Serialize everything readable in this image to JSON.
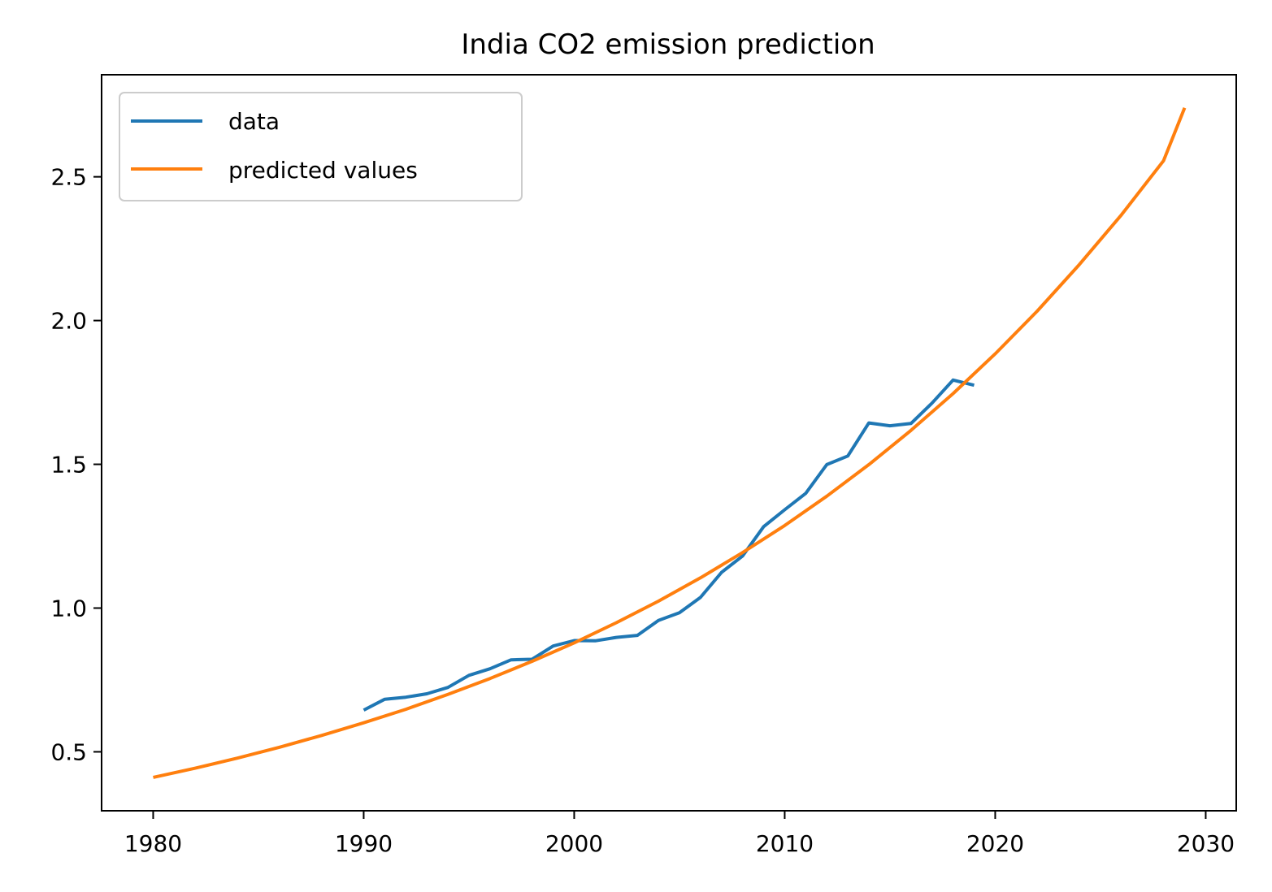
{
  "chart_data": {
    "type": "line",
    "title": "India CO2 emission prediction",
    "xlabel": "",
    "ylabel": "",
    "xlim": [
      1977.55,
      2031.45
    ],
    "ylim": [
      0.295,
      2.855
    ],
    "x_ticks": [
      {
        "value": 1980,
        "label": "1980"
      },
      {
        "value": 1990,
        "label": "1990"
      },
      {
        "value": 2000,
        "label": "2000"
      },
      {
        "value": 2010,
        "label": "2010"
      },
      {
        "value": 2020,
        "label": "2020"
      },
      {
        "value": 2030,
        "label": "2030"
      }
    ],
    "y_ticks": [
      {
        "value": 0.5,
        "label": "0.5"
      },
      {
        "value": 1.0,
        "label": "1.0"
      },
      {
        "value": 1.5,
        "label": "1.5"
      },
      {
        "value": 2.0,
        "label": "2.0"
      },
      {
        "value": 2.5,
        "label": "2.5"
      }
    ],
    "grid": false,
    "legend": {
      "position": "top-left"
    },
    "series": [
      {
        "name": "data",
        "color": "#1f77b4",
        "x": [
          1990,
          1991,
          1992,
          1993,
          1994,
          1995,
          1996,
          1997,
          1998,
          1999,
          2000,
          2001,
          2002,
          2003,
          2004,
          2005,
          2006,
          2007,
          2008,
          2009,
          2010,
          2011,
          2012,
          2013,
          2014,
          2015,
          2016,
          2017,
          2018,
          2019
        ],
        "y": [
          0.645,
          0.683,
          0.69,
          0.702,
          0.724,
          0.766,
          0.789,
          0.82,
          0.822,
          0.868,
          0.887,
          0.886,
          0.898,
          0.905,
          0.957,
          0.984,
          1.037,
          1.124,
          1.181,
          1.283,
          1.342,
          1.399,
          1.499,
          1.529,
          1.644,
          1.634,
          1.642,
          1.713,
          1.793,
          1.775
        ]
      },
      {
        "name": "predicted values",
        "color": "#ff7f0e",
        "x": [
          1980,
          1982,
          1984,
          1986,
          1988,
          1990,
          1992,
          1994,
          1996,
          1998,
          2000,
          2002,
          2004,
          2006,
          2008,
          2010,
          2012,
          2014,
          2016,
          2018,
          2020,
          2022,
          2024,
          2026,
          2028,
          2029
        ],
        "y": [
          0.411,
          0.443,
          0.478,
          0.516,
          0.557,
          0.601,
          0.648,
          0.7,
          0.755,
          0.815,
          0.879,
          0.949,
          1.024,
          1.105,
          1.193,
          1.287,
          1.389,
          1.499,
          1.618,
          1.746,
          1.884,
          2.033,
          2.195,
          2.368,
          2.556,
          2.74
        ]
      }
    ]
  }
}
